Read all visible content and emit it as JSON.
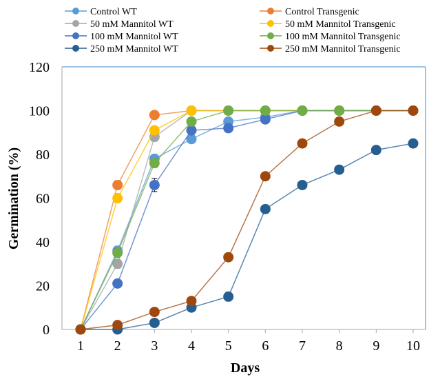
{
  "chart_data": {
    "type": "line",
    "xlabel": "Days",
    "ylabel": "Germination (%)",
    "x": [
      1,
      2,
      3,
      4,
      5,
      6,
      7,
      8,
      9,
      10
    ],
    "xlim": [
      1,
      10
    ],
    "ylim": [
      0,
      120
    ],
    "yticks": [
      0,
      20,
      40,
      60,
      80,
      100,
      120
    ],
    "grid": false,
    "legend_position": "top",
    "series": [
      {
        "name": "Control WT",
        "color": "#5B9BD5",
        "values": [
          0,
          36,
          78,
          87,
          95,
          97,
          100,
          100,
          100,
          100
        ],
        "errors": [
          0,
          2,
          2,
          1,
          1,
          1,
          0,
          0,
          0,
          0
        ]
      },
      {
        "name": "Control Transgenic",
        "color": "#ED7D31",
        "values": [
          0,
          66,
          98,
          100,
          100,
          100,
          100,
          100,
          100,
          100
        ],
        "errors": [
          0,
          2,
          1,
          0,
          0,
          0,
          0,
          0,
          0,
          0
        ]
      },
      {
        "name": "50 mM Mannitol WT",
        "color": "#A5A5A5",
        "values": [
          0,
          30,
          88,
          100,
          100,
          100,
          100,
          100,
          100,
          100
        ],
        "errors": [
          0,
          2,
          2,
          0,
          0,
          0,
          0,
          0,
          0,
          0
        ]
      },
      {
        "name": "50 mM Mannitol Transgenic",
        "color": "#FFC000",
        "values": [
          0,
          60,
          91,
          100,
          100,
          100,
          100,
          100,
          100,
          100
        ],
        "errors": [
          0,
          2,
          1,
          0,
          0,
          0,
          0,
          0,
          0,
          0
        ]
      },
      {
        "name": "100 mM Mannitol WT",
        "color": "#4472C4",
        "values": [
          0,
          21,
          66,
          91,
          92,
          96,
          100,
          100,
          100,
          100
        ],
        "errors": [
          0,
          1,
          3,
          1,
          1,
          1,
          0,
          0,
          0,
          0
        ]
      },
      {
        "name": "100 mM Mannitol Transgenic",
        "color": "#70AD47",
        "values": [
          0,
          35,
          76,
          95,
          100,
          100,
          100,
          100,
          100,
          100
        ],
        "errors": [
          0,
          2,
          2,
          1,
          0,
          0,
          0,
          0,
          0,
          0
        ]
      },
      {
        "name": "250 mM Mannitol WT",
        "color": "#255E91",
        "values": [
          0,
          0,
          3,
          10,
          15,
          55,
          66,
          73,
          82,
          85
        ],
        "errors": [
          0,
          0,
          1,
          1,
          2,
          1,
          1,
          1,
          1,
          1
        ]
      },
      {
        "name": "250 mM Mannitol Transgenic",
        "color": "#9E480E",
        "values": [
          0,
          2,
          8,
          13,
          33,
          70,
          85,
          95,
          100,
          100
        ],
        "errors": [
          0,
          0,
          1,
          1,
          1,
          1,
          1,
          1,
          0,
          0
        ]
      }
    ]
  }
}
